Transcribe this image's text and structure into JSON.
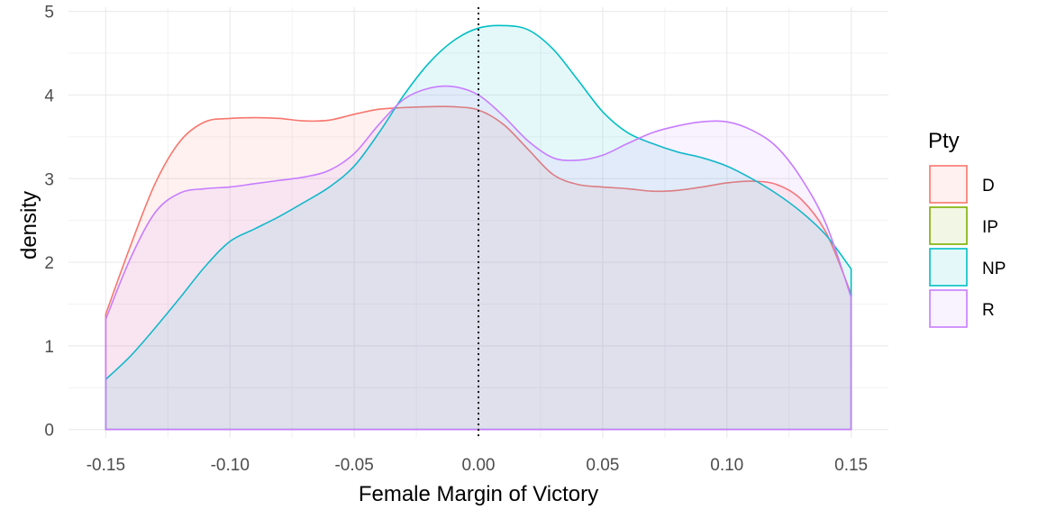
{
  "chart_data": {
    "type": "area",
    "subtype": "density",
    "xlabel": "Female Margin of Victory",
    "ylabel": "density",
    "xlim": [
      -0.165,
      0.165
    ],
    "ylim": [
      -0.1,
      5.05
    ],
    "x_ticks": [
      -0.15,
      -0.1,
      -0.05,
      0.0,
      0.05,
      0.1,
      0.15
    ],
    "x_tick_labels": [
      "-0.15",
      "-0.10",
      "-0.05",
      "0.00",
      "0.05",
      "0.10",
      "0.15"
    ],
    "y_ticks": [
      0,
      1,
      2,
      3,
      4,
      5
    ],
    "y_tick_labels": [
      "0",
      "1",
      "2",
      "3",
      "4",
      "5"
    ],
    "grid": true,
    "reference_line": {
      "x": 0,
      "style": "dotted",
      "color": "#000000"
    },
    "legend": {
      "title": "Pty",
      "position": "right",
      "entries": [
        "D",
        "IP",
        "NP",
        "R"
      ]
    },
    "series": [
      {
        "name": "D",
        "color": "#F8766D",
        "x": [
          -0.15,
          -0.14,
          -0.13,
          -0.12,
          -0.11,
          -0.1,
          -0.09,
          -0.08,
          -0.07,
          -0.06,
          -0.05,
          -0.04,
          -0.03,
          -0.02,
          -0.01,
          0.0,
          0.01,
          0.02,
          0.03,
          0.04,
          0.05,
          0.06,
          0.07,
          0.08,
          0.09,
          0.1,
          0.11,
          0.12,
          0.13,
          0.14,
          0.15
        ],
        "y": [
          1.38,
          2.2,
          2.95,
          3.45,
          3.68,
          3.72,
          3.73,
          3.72,
          3.69,
          3.7,
          3.77,
          3.83,
          3.85,
          3.86,
          3.86,
          3.82,
          3.65,
          3.35,
          3.05,
          2.93,
          2.9,
          2.88,
          2.85,
          2.86,
          2.9,
          2.95,
          2.97,
          2.93,
          2.75,
          2.35,
          1.62
        ]
      },
      {
        "name": "IP",
        "color": "#7CAE00",
        "x": [],
        "y": []
      },
      {
        "name": "NP",
        "color": "#00BFC4",
        "x": [
          -0.15,
          -0.14,
          -0.13,
          -0.12,
          -0.11,
          -0.1,
          -0.09,
          -0.08,
          -0.07,
          -0.06,
          -0.05,
          -0.04,
          -0.03,
          -0.02,
          -0.01,
          0.0,
          0.01,
          0.02,
          0.03,
          0.04,
          0.05,
          0.06,
          0.07,
          0.08,
          0.09,
          0.1,
          0.11,
          0.12,
          0.13,
          0.14,
          0.15
        ],
        "y": [
          0.6,
          0.88,
          1.22,
          1.58,
          1.95,
          2.25,
          2.4,
          2.55,
          2.72,
          2.9,
          3.15,
          3.55,
          4.0,
          4.38,
          4.65,
          4.8,
          4.83,
          4.78,
          4.55,
          4.18,
          3.8,
          3.55,
          3.42,
          3.32,
          3.25,
          3.15,
          3.0,
          2.82,
          2.6,
          2.32,
          1.92
        ]
      },
      {
        "name": "R",
        "color": "#C77CFF",
        "x": [
          -0.15,
          -0.14,
          -0.13,
          -0.12,
          -0.11,
          -0.1,
          -0.09,
          -0.08,
          -0.07,
          -0.06,
          -0.05,
          -0.04,
          -0.03,
          -0.02,
          -0.01,
          0.0,
          0.01,
          0.02,
          0.03,
          0.04,
          0.05,
          0.06,
          0.07,
          0.08,
          0.09,
          0.1,
          0.11,
          0.12,
          0.13,
          0.14,
          0.15
        ],
        "y": [
          1.32,
          2.05,
          2.6,
          2.83,
          2.88,
          2.9,
          2.94,
          2.98,
          3.02,
          3.1,
          3.3,
          3.65,
          3.95,
          4.08,
          4.1,
          4.0,
          3.75,
          3.45,
          3.25,
          3.22,
          3.28,
          3.42,
          3.55,
          3.63,
          3.68,
          3.68,
          3.58,
          3.38,
          3.0,
          2.45,
          1.58
        ]
      }
    ]
  }
}
